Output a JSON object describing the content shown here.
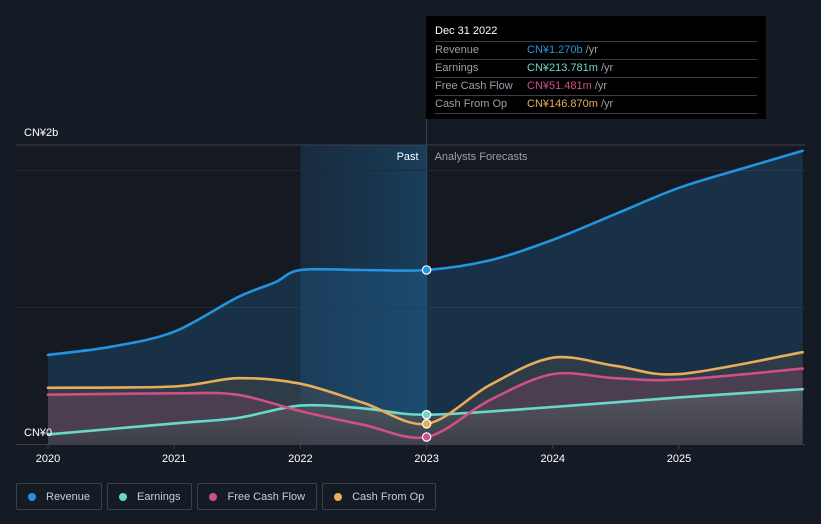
{
  "tooltip": {
    "date": "Dec 31 2022",
    "rows": [
      {
        "label": "Revenue",
        "value": "CN¥1.270b",
        "unit": "/yr",
        "color": "#2394df"
      },
      {
        "label": "Earnings",
        "value": "CN¥213.781m",
        "unit": "/yr",
        "color": "#6ad8c8"
      },
      {
        "label": "Free Cash Flow",
        "value": "CN¥51.481m",
        "unit": "/yr",
        "color": "#d04f86"
      },
      {
        "label": "Cash From Op",
        "value": "CN¥146.870m",
        "unit": "/yr",
        "color": "#e9ac5b"
      }
    ]
  },
  "regions": {
    "past": "Past",
    "forecast": "Analysts Forecasts"
  },
  "legend": [
    {
      "label": "Revenue",
      "color": "#2394df"
    },
    {
      "label": "Earnings",
      "color": "#6ad8c8"
    },
    {
      "label": "Free Cash Flow",
      "color": "#d04f86"
    },
    {
      "label": "Cash From Op",
      "color": "#e9ac5b"
    }
  ],
  "chart_data": {
    "type": "area",
    "title": "",
    "xlabel": "",
    "ylabel": "",
    "y_unit": "CN¥ billions",
    "ylim": [
      0,
      2
    ],
    "xlim": [
      2019.98,
      2025.98
    ],
    "y_tick_labels": [
      {
        "value": 0,
        "label": "CN¥0"
      },
      {
        "value": 2,
        "label": "CN¥2b"
      }
    ],
    "x_ticks": [
      {
        "value": 2020,
        "label": "2020"
      },
      {
        "value": 2021,
        "label": "2021"
      },
      {
        "value": 2022,
        "label": "2022"
      },
      {
        "value": 2023,
        "label": "2023"
      },
      {
        "value": 2024,
        "label": "2024"
      },
      {
        "value": 2025,
        "label": "2025"
      }
    ],
    "past_region": [
      2022.0,
      2023.0
    ],
    "divider_x": 2023.0,
    "highlight_x": 2023.0,
    "grid": true,
    "legend_position": "bottom-left",
    "series": [
      {
        "name": "Revenue",
        "color": "#2394df",
        "x": [
          2020.0,
          2020.5,
          2021.0,
          2021.5,
          2021.8,
          2022.0,
          2022.5,
          2023.0,
          2023.5,
          2024.0,
          2024.5,
          2025.0,
          2025.5,
          2025.98
        ],
        "y": [
          0.65,
          0.71,
          0.82,
          1.07,
          1.18,
          1.27,
          1.27,
          1.27,
          1.34,
          1.49,
          1.68,
          1.87,
          2.01,
          2.14
        ]
      },
      {
        "name": "Earnings",
        "color": "#6ad8c8",
        "x": [
          2020.0,
          2021.0,
          2021.5,
          2022.0,
          2022.5,
          2023.0,
          2024.0,
          2025.0,
          2025.98
        ],
        "y": [
          0.07,
          0.15,
          0.19,
          0.28,
          0.26,
          0.214,
          0.27,
          0.34,
          0.4
        ]
      },
      {
        "name": "Free Cash Flow",
        "color": "#d04f86",
        "x": [
          2020.0,
          2021.0,
          2021.5,
          2022.0,
          2022.5,
          2023.0,
          2023.5,
          2024.0,
          2024.5,
          2025.0,
          2025.98
        ],
        "y": [
          0.36,
          0.37,
          0.36,
          0.24,
          0.14,
          0.051,
          0.32,
          0.51,
          0.48,
          0.47,
          0.55
        ]
      },
      {
        "name": "Cash From Op",
        "color": "#e9ac5b",
        "x": [
          2020.0,
          2021.0,
          2021.5,
          2022.0,
          2022.5,
          2023.0,
          2023.5,
          2024.0,
          2024.5,
          2025.0,
          2025.98
        ],
        "y": [
          0.41,
          0.42,
          0.48,
          0.44,
          0.3,
          0.147,
          0.43,
          0.63,
          0.57,
          0.51,
          0.67
        ]
      }
    ]
  }
}
